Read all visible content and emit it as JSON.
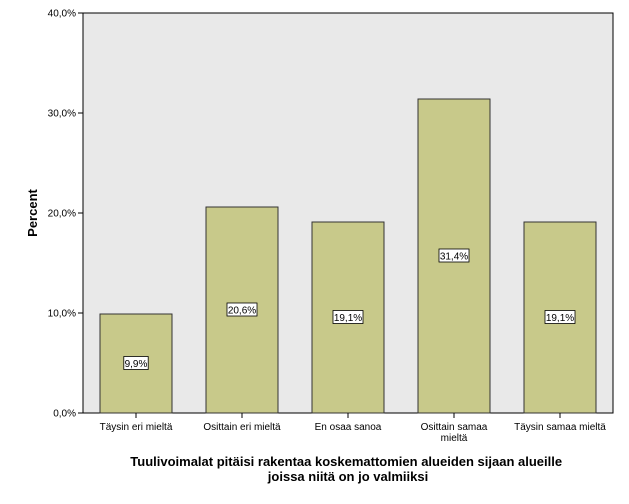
{
  "chart_data": {
    "type": "bar",
    "categories": [
      "Täysin eri mieltä",
      "Osittain eri mieltä",
      "En osaa sanoa",
      "Osittain samaa mieltä",
      "Täysin samaa mieltä"
    ],
    "category_label_lines": [
      [
        "Täysin eri mieltä"
      ],
      [
        "Osittain eri mieltä"
      ],
      [
        "En osaa sanoa"
      ],
      [
        "Osittain samaa",
        "mieltä"
      ],
      [
        "Täysin samaa mieltä"
      ]
    ],
    "values": [
      9.9,
      20.6,
      19.1,
      31.4,
      19.1
    ],
    "data_labels": [
      "9,9%",
      "20,6%",
      "19,1%",
      "31,4%",
      "19,1%"
    ],
    "ylabel": "Percent",
    "xlabel_lines": [
      "Tuulivoimalat pitäisi rakentaa koskemattomien alueiden sijaan alueille",
      "joissa niitä on jo valmiiksi"
    ],
    "ylim": [
      0,
      40
    ],
    "yticks": [
      0,
      10,
      20,
      30,
      40
    ],
    "ytick_labels": [
      "0,0%",
      "10,0%",
      "20,0%",
      "30,0%",
      "40,0%"
    ],
    "grid": false,
    "colors": {
      "bar_fill": "#c8c98a",
      "bar_stroke": "#333333",
      "plot_background": "#e9e9e9"
    }
  }
}
